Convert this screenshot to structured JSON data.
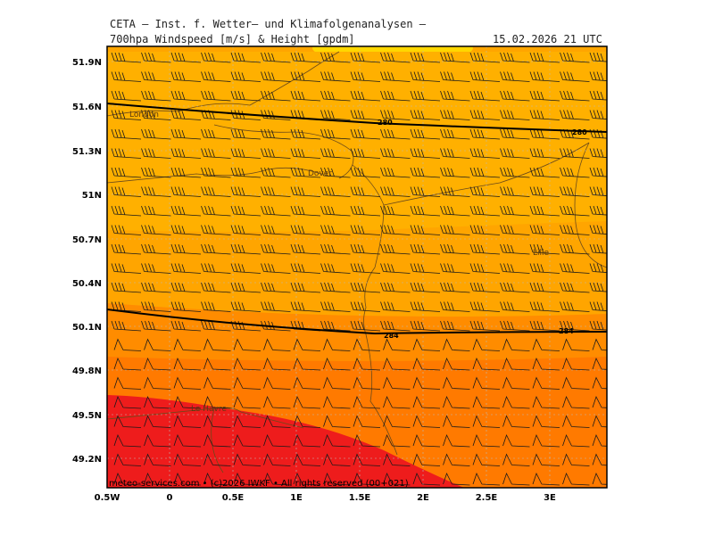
{
  "header": {
    "line1": "CETA – Inst. f. Wetter– und Klimafolgenanalysen –",
    "line2": "700hpa Windspeed [m/s] & Height [gpdm]",
    "datetime": "15.02.2026 21 UTC"
  },
  "axes": {
    "lat_labels": [
      "51.9N",
      "51.6N",
      "51.3N",
      "51N",
      "50.7N",
      "50.4N",
      "50.1N",
      "49.8N",
      "49.5N",
      "49.2N"
    ],
    "lon_labels": [
      "0.5W",
      "0",
      "0.5E",
      "1E",
      "1.5E",
      "2E",
      "2.5E",
      "3E"
    ]
  },
  "cities": [
    {
      "name": "London"
    },
    {
      "name": "Dover"
    },
    {
      "name": "Lille"
    },
    {
      "name": "Le Havre"
    }
  ],
  "contours": [
    {
      "label": "280"
    },
    {
      "label": "280"
    },
    {
      "label": "284"
    },
    {
      "label": "284"
    }
  ],
  "footer": "meteo-services.com • (c)2026 IWKF • All rights reserved (00+021)",
  "colors": {
    "band_yellow": "#ffd700",
    "band_light": "#ffa500",
    "band_mid": "#ff8c00",
    "band_dark": "#ff6a00",
    "band_red": "#ee1c1c"
  }
}
